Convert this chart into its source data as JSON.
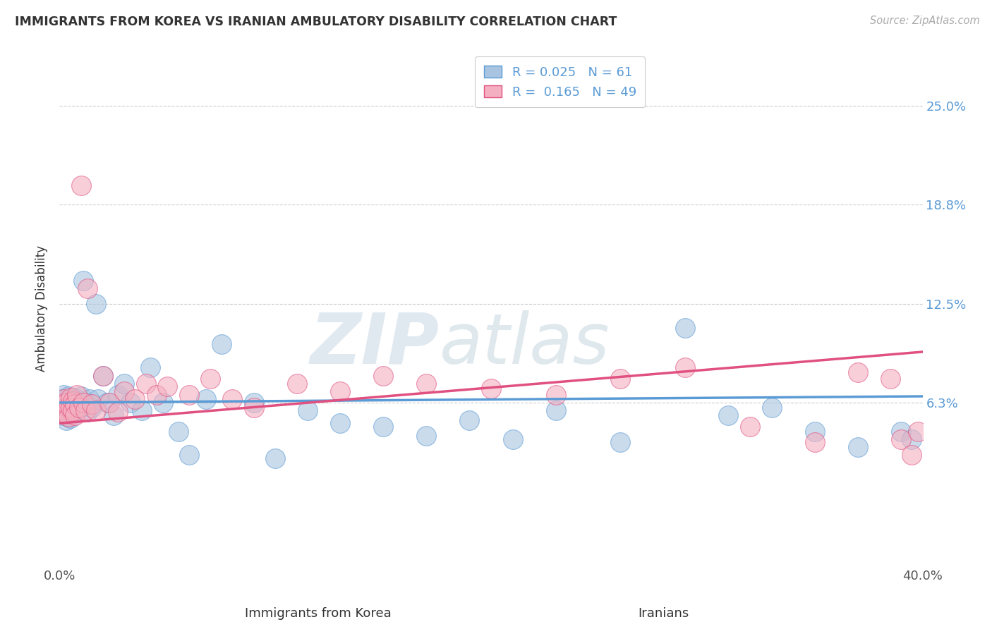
{
  "title": "IMMIGRANTS FROM KOREA VS IRANIAN AMBULATORY DISABILITY CORRELATION CHART",
  "source": "Source: ZipAtlas.com",
  "ylabel": "Ambulatory Disability",
  "ytick_labels": [
    "25.0%",
    "18.8%",
    "12.5%",
    "6.3%"
  ],
  "ytick_values": [
    0.25,
    0.188,
    0.125,
    0.063
  ],
  "xlim": [
    0.0,
    0.4
  ],
  "ylim": [
    -0.04,
    0.285
  ],
  "legend_R1": "0.025",
  "legend_N1": "61",
  "legend_R2": "0.165",
  "legend_N2": "49",
  "korea_color": "#5b9bd5",
  "iran_color": "#e05080",
  "korea_fill": "#a8c4e0",
  "iran_fill": "#f4b0c0",
  "watermark1": "ZIP",
  "watermark2": "atlas",
  "background_color": "#ffffff",
  "grid_color": "#cccccc",
  "korea_line_x": [
    0.0,
    0.4
  ],
  "korea_line_y": [
    0.063,
    0.067
  ],
  "iran_line_x": [
    0.0,
    0.4
  ],
  "iran_line_y": [
    0.05,
    0.095
  ],
  "korea_x": [
    0.001,
    0.001,
    0.001,
    0.002,
    0.002,
    0.002,
    0.003,
    0.003,
    0.003,
    0.004,
    0.004,
    0.004,
    0.005,
    0.005,
    0.005,
    0.006,
    0.006,
    0.007,
    0.007,
    0.008,
    0.008,
    0.009,
    0.01,
    0.01,
    0.011,
    0.012,
    0.013,
    0.014,
    0.015,
    0.017,
    0.018,
    0.02,
    0.022,
    0.025,
    0.027,
    0.03,
    0.033,
    0.038,
    0.042,
    0.048,
    0.055,
    0.06,
    0.068,
    0.075,
    0.09,
    0.1,
    0.115,
    0.13,
    0.15,
    0.17,
    0.19,
    0.21,
    0.23,
    0.26,
    0.29,
    0.31,
    0.33,
    0.35,
    0.37,
    0.39,
    0.395
  ],
  "korea_y": [
    0.065,
    0.06,
    0.055,
    0.068,
    0.062,
    0.057,
    0.063,
    0.058,
    0.052,
    0.067,
    0.06,
    0.054,
    0.064,
    0.059,
    0.053,
    0.066,
    0.06,
    0.063,
    0.057,
    0.065,
    0.059,
    0.063,
    0.067,
    0.06,
    0.14,
    0.063,
    0.057,
    0.065,
    0.06,
    0.125,
    0.065,
    0.08,
    0.063,
    0.055,
    0.068,
    0.075,
    0.063,
    0.058,
    0.085,
    0.063,
    0.045,
    0.03,
    0.065,
    0.1,
    0.063,
    0.028,
    0.058,
    0.05,
    0.048,
    0.042,
    0.052,
    0.04,
    0.058,
    0.038,
    0.11,
    0.055,
    0.06,
    0.045,
    0.035,
    0.045,
    0.04
  ],
  "iran_x": [
    0.001,
    0.001,
    0.002,
    0.002,
    0.003,
    0.003,
    0.004,
    0.004,
    0.005,
    0.005,
    0.006,
    0.006,
    0.007,
    0.007,
    0.008,
    0.009,
    0.01,
    0.011,
    0.012,
    0.013,
    0.015,
    0.017,
    0.02,
    0.023,
    0.027,
    0.03,
    0.035,
    0.04,
    0.045,
    0.05,
    0.06,
    0.07,
    0.08,
    0.09,
    0.11,
    0.13,
    0.15,
    0.17,
    0.2,
    0.23,
    0.26,
    0.29,
    0.32,
    0.35,
    0.37,
    0.385,
    0.39,
    0.395,
    0.398
  ],
  "iran_y": [
    0.062,
    0.057,
    0.065,
    0.059,
    0.063,
    0.056,
    0.06,
    0.054,
    0.066,
    0.06,
    0.064,
    0.058,
    0.062,
    0.055,
    0.068,
    0.06,
    0.2,
    0.063,
    0.058,
    0.135,
    0.062,
    0.058,
    0.08,
    0.063,
    0.057,
    0.07,
    0.065,
    0.075,
    0.068,
    0.073,
    0.068,
    0.078,
    0.065,
    0.06,
    0.075,
    0.07,
    0.08,
    0.075,
    0.072,
    0.068,
    0.078,
    0.085,
    0.048,
    0.038,
    0.082,
    0.078,
    0.04,
    0.03,
    0.045
  ]
}
